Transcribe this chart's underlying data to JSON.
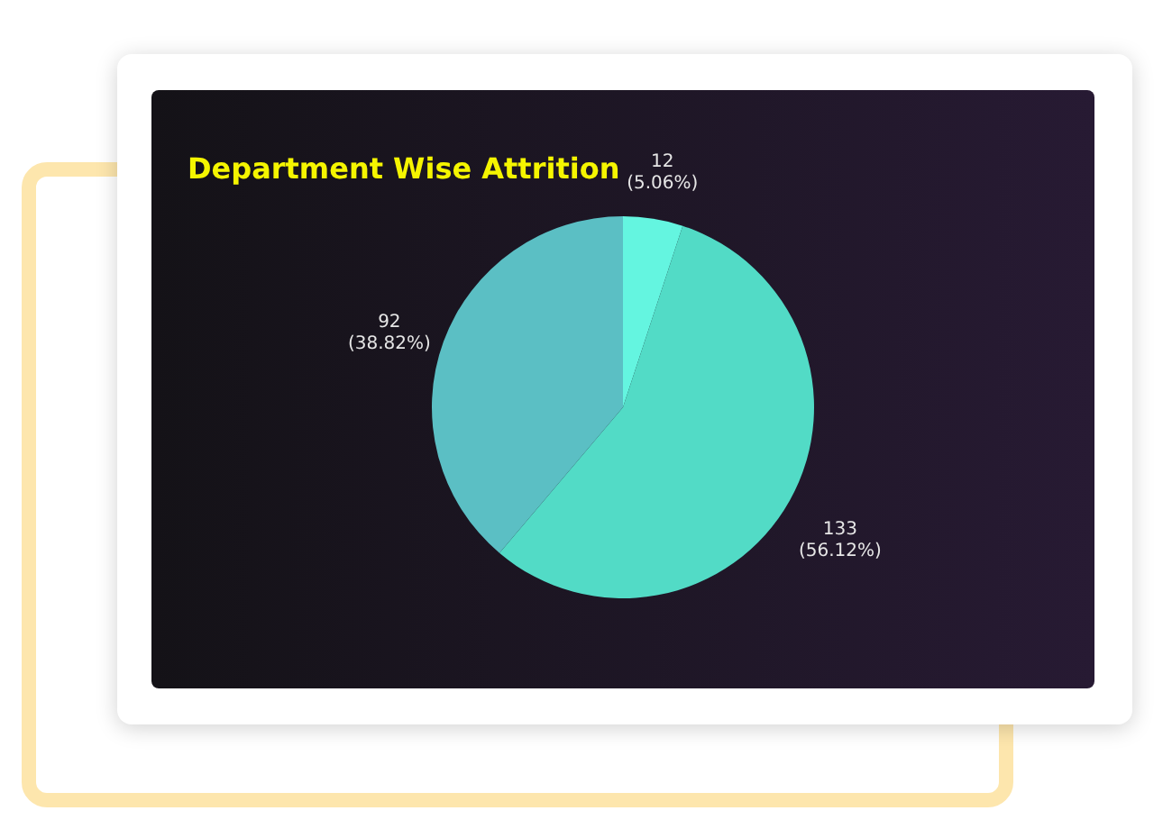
{
  "chart_data": {
    "type": "pie",
    "title": "Department Wise Attrition",
    "categories": [
      null,
      null,
      null
    ],
    "values": [
      12,
      133,
      92
    ],
    "colors": [
      "#64f5e0",
      "#52dbc6",
      "#5bbfc4"
    ],
    "value_labels": [
      "12\n(5.06%)",
      "133\n(56.12%)",
      "92\n(38.82%)"
    ]
  }
}
